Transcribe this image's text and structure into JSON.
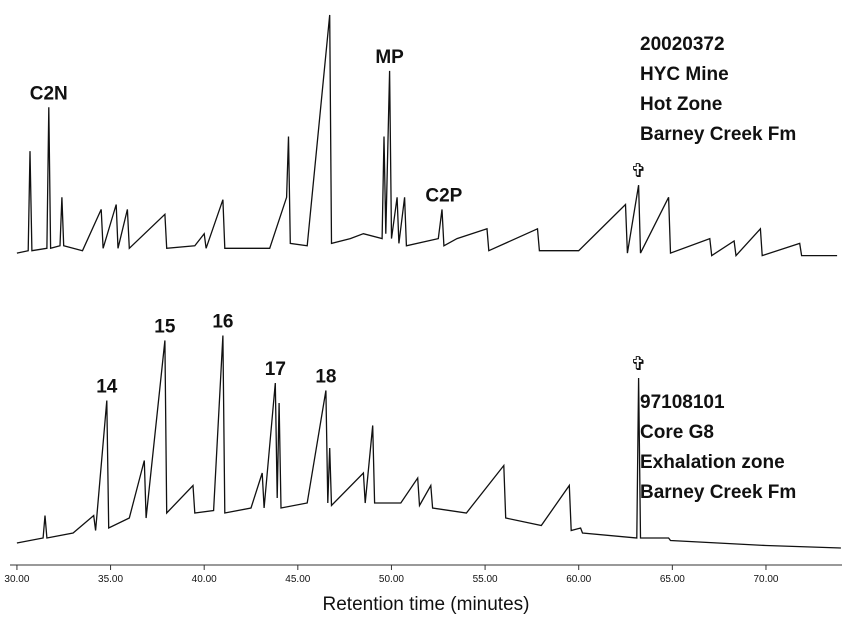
{
  "chart_data": [
    {
      "type": "line",
      "color": "#111111",
      "xlim": [
        29.63,
        74.06
      ],
      "ylim": [
        0,
        100
      ],
      "x": [
        30,
        30.6,
        30.7,
        30.8,
        31.6,
        31.7,
        31.8,
        32.3,
        32.4,
        32.5,
        33.5,
        34.5,
        34.6,
        35.3,
        35.4,
        35.9,
        36.0,
        37.9,
        38.0,
        39.5,
        40.0,
        40.1,
        41.0,
        41.1,
        43.5,
        44.4,
        44.5,
        44.6,
        45.5,
        46.7,
        46.8,
        47.8,
        48.5,
        49.5,
        49.6,
        49.7,
        49.9,
        50.0,
        50.3,
        50.4,
        50.7,
        50.8,
        52.5,
        52.7,
        52.8,
        53.5,
        55.1,
        55.2,
        57.8,
        57.9,
        60,
        62.5,
        62.6,
        63.2,
        63.3,
        64.8,
        64.9,
        67.0,
        67.1,
        68.3,
        68.4,
        69.7,
        69.8,
        71.8,
        71.9,
        73.8
      ],
      "values": [
        2,
        3,
        44,
        3,
        4,
        62,
        4,
        5,
        25,
        5,
        3,
        20,
        4,
        22,
        4,
        20,
        4,
        18,
        4,
        5,
        10,
        4,
        24,
        4,
        4,
        25,
        50,
        6,
        5,
        100,
        6,
        8,
        10,
        8,
        50,
        10,
        77,
        8,
        25,
        6,
        25,
        5,
        8,
        20,
        5,
        8,
        12,
        3,
        12,
        3,
        3,
        22,
        2,
        30,
        2,
        25,
        2,
        8,
        1,
        7,
        1,
        12,
        1,
        6,
        1,
        1
      ],
      "annotations": [
        {
          "text": "C2N",
          "x": 31.7,
          "y": 62
        },
        {
          "text": "MP",
          "x": 49.9,
          "y": 77
        },
        {
          "text": "C2P",
          "x": 52.8,
          "y": 20
        },
        {
          "text": "✞",
          "x": 63.2,
          "y": 30
        }
      ],
      "notes": [
        "20020372",
        "HYC Mine",
        "Hot Zone",
        "Barney Creek Fm"
      ]
    },
    {
      "type": "line",
      "color": "#111111",
      "xlim": [
        29.63,
        74.06
      ],
      "ylim": [
        0,
        100
      ],
      "x": [
        30,
        31.4,
        31.5,
        31.6,
        33,
        34.1,
        34.2,
        34.8,
        34.9,
        36,
        36.8,
        36.9,
        37.9,
        38.0,
        39.4,
        39.5,
        40.5,
        41.0,
        41.1,
        42.5,
        43.1,
        43.2,
        43.8,
        43.9,
        44.0,
        44.1,
        45.5,
        46.5,
        46.6,
        46.7,
        46.8,
        48.5,
        48.6,
        49.0,
        49.1,
        50.5,
        51.4,
        51.5,
        52.1,
        52.2,
        54,
        56.0,
        56.1,
        58,
        59.5,
        59.6,
        60.1,
        60.2,
        63.1,
        63.2,
        63.3,
        64.8,
        64.9,
        70,
        74
      ],
      "values": [
        2,
        4,
        13,
        4,
        6,
        13,
        7,
        59,
        8,
        12,
        35,
        12,
        83,
        14,
        25,
        14,
        15,
        85,
        14,
        16,
        30,
        16,
        66,
        20,
        58,
        16,
        18,
        63,
        18,
        40,
        17,
        30,
        18,
        49,
        18,
        18,
        28,
        17,
        25,
        16,
        14,
        33,
        12,
        9,
        25,
        7,
        8,
        6,
        4,
        68,
        4,
        4,
        3,
        1,
        0
      ],
      "annotations": [
        {
          "text": "14",
          "x": 34.8,
          "y": 59
        },
        {
          "text": "15",
          "x": 37.9,
          "y": 83
        },
        {
          "text": "16",
          "x": 41.0,
          "y": 85
        },
        {
          "text": "17",
          "x": 43.8,
          "y": 66
        },
        {
          "text": "18",
          "x": 46.5,
          "y": 63
        },
        {
          "text": "✞",
          "x": 63.2,
          "y": 68
        }
      ],
      "notes": [
        "97108101",
        "Core G8",
        "Exhalation zone",
        "Barney Creek Fm"
      ],
      "xticks": [
        {
          "value": 30,
          "label": "30.00"
        },
        {
          "value": 35,
          "label": "35.00"
        },
        {
          "value": 40,
          "label": "40.00"
        },
        {
          "value": 45,
          "label": "45.00"
        },
        {
          "value": 50,
          "label": "50.00"
        },
        {
          "value": 55,
          "label": "55.00"
        },
        {
          "value": 60,
          "label": "60.00"
        },
        {
          "value": 65,
          "label": "65.00"
        },
        {
          "value": 70,
          "label": "70.00"
        }
      ],
      "xlabel": "Retention time (minutes)"
    }
  ]
}
